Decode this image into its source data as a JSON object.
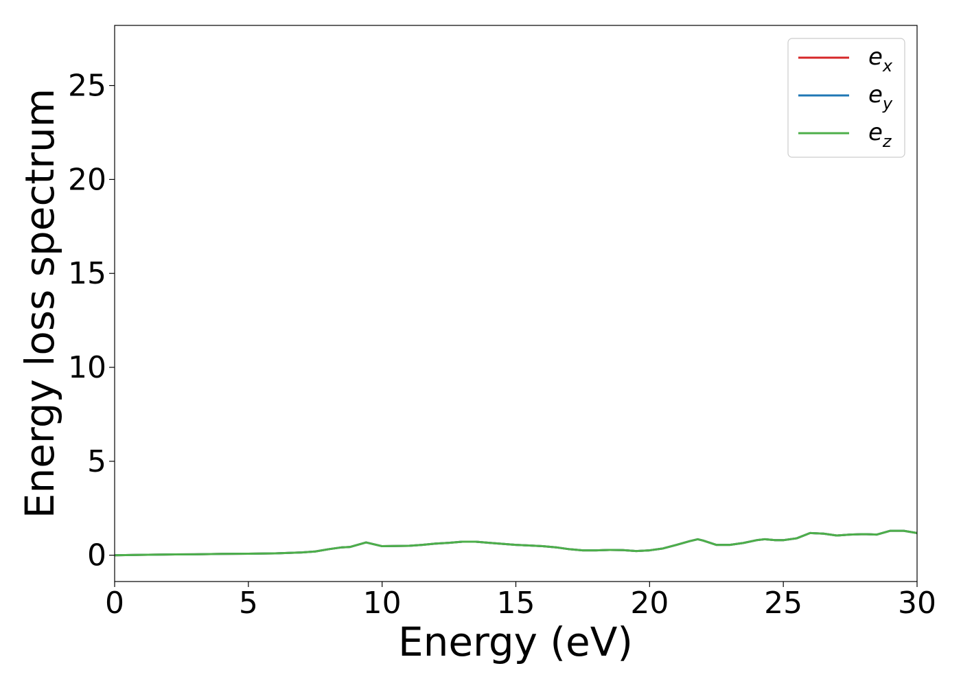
{
  "chart_data": {
    "type": "line",
    "title": "",
    "xlabel": "Energy (eV)",
    "ylabel": "Energy loss spectrum",
    "xlim": [
      0,
      30
    ],
    "ylim": [
      -1.4,
      28.2
    ],
    "xticks": [
      0,
      5,
      10,
      15,
      20,
      25,
      30
    ],
    "yticks": [
      0,
      5,
      10,
      15,
      20,
      25
    ],
    "xtick_labels": [
      "0",
      "5",
      "10",
      "15",
      "20",
      "25",
      "30"
    ],
    "ytick_labels": [
      "0",
      "5",
      "10",
      "15",
      "20",
      "25"
    ],
    "grid": false,
    "legend": {
      "placement": "top-right"
    },
    "x": [
      0,
      1,
      2,
      3,
      4,
      5,
      6,
      7,
      7.5,
      8,
      8.5,
      8.8,
      9.4,
      10,
      11,
      11.5,
      12,
      12.5,
      13,
      13.5,
      14,
      15,
      15.5,
      16,
      16.5,
      17,
      17.5,
      18,
      18.5,
      19,
      19.5,
      20,
      20.5,
      21,
      21.5,
      21.8,
      22,
      22.5,
      23,
      23.5,
      24,
      24.3,
      24.7,
      25,
      25.5,
      26,
      26.5,
      27,
      27.5,
      28,
      28.5,
      29,
      29.5,
      30
    ],
    "series": [
      {
        "name": "e_x",
        "label_base": "e",
        "label_sub": "x",
        "color": "#d62728",
        "values": [
          0.0,
          0.02,
          0.04,
          0.05,
          0.07,
          0.08,
          0.1,
          0.15,
          0.2,
          0.32,
          0.42,
          0.44,
          0.68,
          0.48,
          0.5,
          0.55,
          0.62,
          0.66,
          0.72,
          0.72,
          0.66,
          0.55,
          0.52,
          0.48,
          0.42,
          0.32,
          0.26,
          0.26,
          0.28,
          0.27,
          0.22,
          0.26,
          0.36,
          0.55,
          0.75,
          0.85,
          0.78,
          0.55,
          0.55,
          0.65,
          0.8,
          0.85,
          0.8,
          0.8,
          0.9,
          1.18,
          1.15,
          1.05,
          1.1,
          1.12,
          1.1,
          1.3,
          1.3,
          1.18
        ]
      },
      {
        "name": "e_y",
        "label_base": "e",
        "label_sub": "y",
        "color": "#1f77b4",
        "values": [
          0.0,
          0.02,
          0.04,
          0.05,
          0.07,
          0.08,
          0.1,
          0.15,
          0.2,
          0.32,
          0.42,
          0.44,
          0.68,
          0.48,
          0.5,
          0.55,
          0.62,
          0.66,
          0.72,
          0.72,
          0.66,
          0.55,
          0.52,
          0.48,
          0.42,
          0.32,
          0.26,
          0.26,
          0.28,
          0.27,
          0.22,
          0.26,
          0.36,
          0.55,
          0.75,
          0.85,
          0.78,
          0.55,
          0.55,
          0.65,
          0.8,
          0.85,
          0.8,
          0.8,
          0.9,
          1.18,
          1.15,
          1.05,
          1.1,
          1.12,
          1.1,
          1.3,
          1.3,
          1.18
        ]
      },
      {
        "name": "e_z",
        "label_base": "e",
        "label_sub": "z",
        "color": "#4daf4a",
        "values": [
          0.0,
          0.02,
          0.04,
          0.05,
          0.07,
          0.08,
          0.1,
          0.15,
          0.2,
          0.32,
          0.42,
          0.44,
          0.68,
          0.48,
          0.5,
          0.55,
          0.62,
          0.66,
          0.72,
          0.72,
          0.66,
          0.55,
          0.52,
          0.48,
          0.42,
          0.32,
          0.26,
          0.26,
          0.28,
          0.27,
          0.22,
          0.26,
          0.36,
          0.55,
          0.75,
          0.85,
          0.78,
          0.55,
          0.55,
          0.65,
          0.8,
          0.85,
          0.8,
          0.8,
          0.9,
          1.18,
          1.15,
          1.05,
          1.1,
          1.12,
          1.1,
          1.3,
          1.3,
          1.18
        ]
      }
    ]
  }
}
